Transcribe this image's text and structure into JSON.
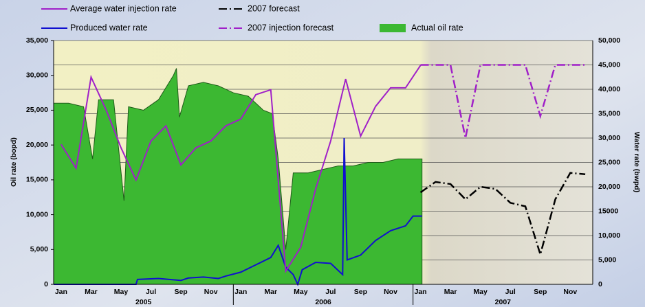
{
  "chart_data": {
    "type": "line",
    "y_label": "Oil rate (bopd)",
    "y2_label": "Water rate (bwpd)",
    "xlim": [
      0,
      36
    ],
    "xticks": [
      {
        "value": 0.5,
        "label": "Jan"
      },
      {
        "value": 2.5,
        "label": "Mar"
      },
      {
        "value": 4.5,
        "label": "May"
      },
      {
        "value": 6.5,
        "label": "Jul"
      },
      {
        "value": 8.5,
        "label": "Sep"
      },
      {
        "value": 10.5,
        "label": "Nov"
      },
      {
        "value": 12.5,
        "label": "Jan"
      },
      {
        "value": 14.5,
        "label": "Mar"
      },
      {
        "value": 16.5,
        "label": "May"
      },
      {
        "value": 18.5,
        "label": "Jul"
      },
      {
        "value": 20.5,
        "label": "Sep"
      },
      {
        "value": 22.5,
        "label": "Nov"
      },
      {
        "value": 24.5,
        "label": "Jan"
      },
      {
        "value": 26.5,
        "label": "Mar"
      },
      {
        "value": 28.5,
        "label": "May"
      },
      {
        "value": 30.5,
        "label": "Jul"
      },
      {
        "value": 32.5,
        "label": "Sep"
      },
      {
        "value": 34.5,
        "label": "Nov"
      }
    ],
    "years": [
      {
        "value": 6,
        "label": "2005"
      },
      {
        "value": 18,
        "label": "2006"
      },
      {
        "value": 30,
        "label": "2007"
      }
    ],
    "ylim": [
      0,
      35000
    ],
    "yticks": [
      0,
      {
        "value": 5000,
        "label": "5,000"
      },
      {
        "value": 10000,
        "label": "10,000"
      },
      {
        "value": 15000,
        "label": "15,000"
      },
      {
        "value": 20000,
        "label": "20,000"
      },
      {
        "value": 25000,
        "label": "25,000"
      },
      {
        "value": 30000,
        "label": "30,000"
      },
      {
        "value": 35000,
        "label": "35,000"
      }
    ],
    "y2lim": [
      0,
      50000
    ],
    "y2ticks": [
      0,
      {
        "value": 5000,
        "label": "5,000"
      },
      {
        "value": 10000,
        "label": "10,000"
      },
      {
        "value": 15000,
        "label": "15000"
      },
      {
        "value": 20000,
        "label": "20,000"
      },
      {
        "value": 25000,
        "label": "25,000"
      },
      {
        "value": 30000,
        "label": "30,000"
      },
      {
        "value": 35000,
        "label": "35,000"
      },
      {
        "value": 40000,
        "label": "40,000"
      },
      {
        "value": 45000,
        "label": "45,000"
      },
      {
        "value": 50000,
        "label": "50,000"
      }
    ],
    "grid": true,
    "series": [
      {
        "name": "Average water injection rate",
        "color": "#a020c8",
        "style": "solid",
        "axis": "y2",
        "x": [
          0.5,
          1.5,
          2.5,
          3.5,
          4.5,
          5.5,
          6.5,
          7.5,
          8.5,
          9.5,
          10.5,
          11.5,
          12.5,
          13.5,
          14.5,
          15.5,
          16.5,
          17.5,
          18.5,
          19.5,
          20.5,
          21.5,
          22.5,
          23.5,
          24.5
        ],
        "values": [
          28700,
          23800,
          42500,
          35800,
          28000,
          21400,
          29400,
          32500,
          24500,
          28000,
          29400,
          32500,
          33900,
          38900,
          39900,
          2700,
          7600,
          19600,
          29400,
          42100,
          30400,
          36500,
          40300,
          40300,
          44900
        ]
      },
      {
        "name": "2007 forecast",
        "color": "#000000",
        "style": "dash-dot",
        "axis": "y",
        "x": [
          24.5,
          25.5,
          26.5,
          27.5,
          28.5,
          29.5,
          30.5,
          31.5,
          32.5,
          33.5,
          34.5,
          35.5
        ],
        "values": [
          13200,
          14700,
          14400,
          12200,
          14000,
          13700,
          11700,
          11200,
          4300,
          12200,
          16000,
          15800
        ]
      },
      {
        "name": "Produced water rate",
        "color": "#1010d0",
        "style": "solid",
        "axis": "y2",
        "x": [
          0,
          5.5,
          5.6,
          7,
          8.5,
          9,
          10,
          11,
          11.5,
          12.5,
          13.5,
          14.5,
          15,
          15.5,
          16,
          16.3,
          16.6,
          17.5,
          18.5,
          19.3,
          19.4,
          19.6,
          20.5,
          21.5,
          22.5,
          23.5,
          24,
          24.6
        ],
        "values": [
          0,
          0,
          1000,
          1200,
          800,
          1300,
          1500,
          1200,
          1700,
          2500,
          4000,
          5500,
          8000,
          3500,
          2000,
          0,
          3000,
          4500,
          4300,
          2000,
          30000,
          5000,
          6000,
          9000,
          11000,
          12000,
          14000,
          14000
        ]
      },
      {
        "name": "2007 injection forecast",
        "color": "#a020c8",
        "style": "dash-dot",
        "axis": "y2",
        "x": [
          24.5,
          25.5,
          26.5,
          27.5,
          28.5,
          29.5,
          30.5,
          31.5,
          32.5,
          33.5,
          34.5,
          35.5
        ],
        "values": [
          45000,
          45000,
          45000,
          30000,
          45000,
          45000,
          45000,
          45000,
          34500,
          45000,
          45000,
          45000
        ]
      },
      {
        "name": "Actual oil rate",
        "color": "#3cb832",
        "style": "area",
        "axis": "y",
        "x": [
          0,
          1,
          2,
          2.6,
          3,
          4,
          4.7,
          5,
          6,
          7,
          8,
          8.2,
          8.4,
          9,
          10,
          11,
          12,
          13,
          14,
          14.6,
          15,
          15.5,
          16,
          17,
          18,
          19,
          20,
          21,
          22,
          23,
          24,
          24.6
        ],
        "values": [
          26000,
          26000,
          25500,
          18000,
          26500,
          26500,
          12000,
          25500,
          25000,
          26500,
          30000,
          31000,
          24000,
          28500,
          29000,
          28500,
          27500,
          27000,
          25000,
          24500,
          18000,
          5000,
          16000,
          16000,
          16500,
          17000,
          17000,
          17500,
          17500,
          18000,
          18000,
          18000
        ]
      }
    ]
  }
}
